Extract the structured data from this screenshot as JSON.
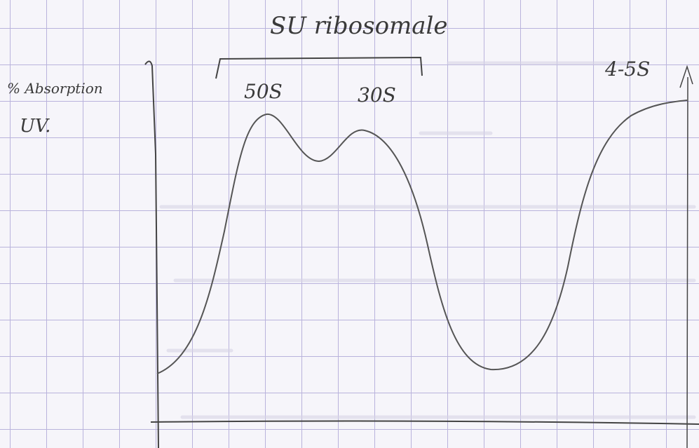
{
  "header": {
    "title": "SU ribosomale"
  },
  "axis": {
    "y_label_line1": "% Absorption",
    "y_label_line2": "UV."
  },
  "peaks": [
    {
      "label": "50S"
    },
    {
      "label": "30S"
    },
    {
      "label": "4-5S"
    }
  ]
}
